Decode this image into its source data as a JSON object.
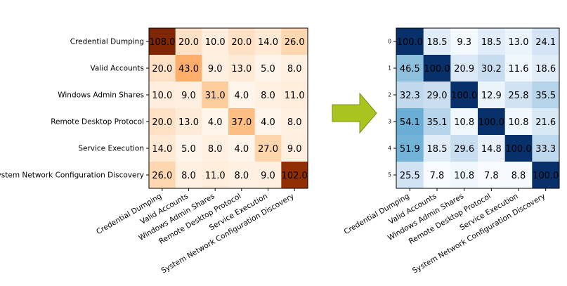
{
  "chart_data": [
    {
      "type": "heatmap",
      "title": "",
      "colormap": "Oranges",
      "row_labels": [
        "Credential Dumping",
        "Valid Accounts",
        "Windows Admin Shares",
        "Remote Desktop Protocol",
        "Service Execution",
        "System Network Configuration Discovery"
      ],
      "col_labels": [
        "Credential Dumping",
        "Valid Accounts",
        "Windows Admin Shares",
        "Remote Desktop Protocol",
        "Service Execution",
        "System Network Configuration Discovery"
      ],
      "values": [
        [
          108.0,
          20.0,
          10.0,
          20.0,
          14.0,
          26.0
        ],
        [
          20.0,
          43.0,
          9.0,
          13.0,
          5.0,
          8.0
        ],
        [
          10.0,
          9.0,
          31.0,
          4.0,
          8.0,
          11.0
        ],
        [
          20.0,
          13.0,
          4.0,
          37.0,
          4.0,
          8.0
        ],
        [
          14.0,
          5.0,
          8.0,
          4.0,
          27.0,
          9.0
        ],
        [
          26.0,
          8.0,
          11.0,
          8.0,
          9.0,
          102.0
        ]
      ]
    },
    {
      "type": "heatmap",
      "title": "",
      "colormap": "Blues",
      "row_labels": [
        "0",
        "1",
        "2",
        "3",
        "4",
        "5"
      ],
      "col_labels": [
        "Credential Dumping",
        "Valid Accounts",
        "Windows Admin Shares",
        "Remote Desktop Protocol",
        "Service Execution",
        "System Network Configuration Discovery"
      ],
      "values": [
        [
          100.0,
          18.5,
          9.3,
          18.5,
          13.0,
          24.1
        ],
        [
          46.5,
          100.0,
          20.9,
          30.2,
          11.6,
          18.6
        ],
        [
          32.3,
          29.0,
          100.0,
          12.9,
          25.8,
          35.5
        ],
        [
          54.1,
          35.1,
          10.8,
          100.0,
          10.8,
          21.6
        ],
        [
          51.9,
          18.5,
          29.6,
          14.8,
          100.0,
          33.3
        ],
        [
          25.5,
          7.8,
          10.8,
          7.8,
          8.8,
          100.0
        ]
      ]
    }
  ],
  "arrow": {
    "color": "#a9c41f",
    "direction": "right"
  }
}
